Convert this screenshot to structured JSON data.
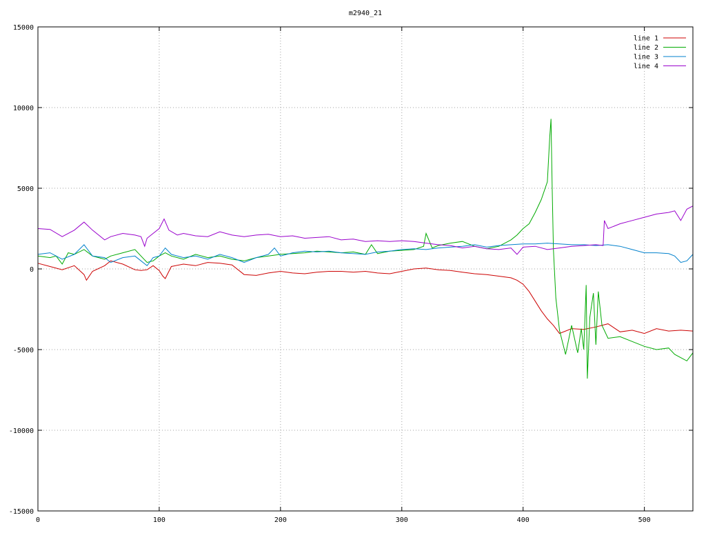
{
  "chart_data": {
    "type": "line",
    "title": "m2940_21",
    "xlabel": "",
    "ylabel": "",
    "xlim": [
      0,
      540
    ],
    "ylim": [
      -15000,
      15000
    ],
    "xticks": [
      0,
      100,
      200,
      300,
      400,
      500
    ],
    "yticks": [
      -15000,
      -10000,
      -5000,
      0,
      5000,
      10000,
      15000
    ],
    "grid": true,
    "legend_position": "top-right",
    "series": [
      {
        "name": "line 1",
        "color": "#cc0000",
        "points": [
          [
            0,
            350
          ],
          [
            10,
            150
          ],
          [
            20,
            -50
          ],
          [
            30,
            200
          ],
          [
            38,
            -350
          ],
          [
            40,
            -700
          ],
          [
            45,
            -150
          ],
          [
            55,
            200
          ],
          [
            60,
            500
          ],
          [
            70,
            300
          ],
          [
            80,
            -50
          ],
          [
            85,
            -100
          ],
          [
            90,
            -50
          ],
          [
            95,
            200
          ],
          [
            100,
            -100
          ],
          [
            103,
            -450
          ],
          [
            105,
            -600
          ],
          [
            110,
            150
          ],
          [
            120,
            300
          ],
          [
            130,
            200
          ],
          [
            140,
            400
          ],
          [
            150,
            350
          ],
          [
            160,
            250
          ],
          [
            170,
            -350
          ],
          [
            180,
            -400
          ],
          [
            190,
            -250
          ],
          [
            200,
            -150
          ],
          [
            210,
            -250
          ],
          [
            220,
            -300
          ],
          [
            230,
            -200
          ],
          [
            240,
            -150
          ],
          [
            250,
            -150
          ],
          [
            260,
            -200
          ],
          [
            270,
            -150
          ],
          [
            280,
            -250
          ],
          [
            290,
            -300
          ],
          [
            300,
            -150
          ],
          [
            310,
            0
          ],
          [
            320,
            50
          ],
          [
            330,
            -50
          ],
          [
            340,
            -100
          ],
          [
            350,
            -200
          ],
          [
            360,
            -300
          ],
          [
            370,
            -350
          ],
          [
            380,
            -450
          ],
          [
            390,
            -550
          ],
          [
            395,
            -700
          ],
          [
            400,
            -950
          ],
          [
            405,
            -1400
          ],
          [
            410,
            -2000
          ],
          [
            415,
            -2600
          ],
          [
            420,
            -3100
          ],
          [
            425,
            -3500
          ],
          [
            430,
            -4000
          ],
          [
            440,
            -3700
          ],
          [
            450,
            -3750
          ],
          [
            460,
            -3600
          ],
          [
            465,
            -3500
          ],
          [
            470,
            -3400
          ],
          [
            480,
            -3900
          ],
          [
            490,
            -3800
          ],
          [
            500,
            -4000
          ],
          [
            510,
            -3700
          ],
          [
            520,
            -3850
          ],
          [
            530,
            -3800
          ],
          [
            540,
            -3850
          ]
        ]
      },
      {
        "name": "line 2",
        "color": "#00aa00",
        "points": [
          [
            0,
            800
          ],
          [
            10,
            700
          ],
          [
            15,
            800
          ],
          [
            20,
            300
          ],
          [
            25,
            1000
          ],
          [
            30,
            900
          ],
          [
            38,
            1200
          ],
          [
            45,
            800
          ],
          [
            50,
            700
          ],
          [
            55,
            600
          ],
          [
            60,
            800
          ],
          [
            70,
            1000
          ],
          [
            80,
            1200
          ],
          [
            85,
            800
          ],
          [
            90,
            400
          ],
          [
            95,
            500
          ],
          [
            100,
            800
          ],
          [
            105,
            1000
          ],
          [
            110,
            800
          ],
          [
            120,
            600
          ],
          [
            130,
            900
          ],
          [
            140,
            700
          ],
          [
            150,
            800
          ],
          [
            160,
            600
          ],
          [
            170,
            500
          ],
          [
            180,
            700
          ],
          [
            190,
            800
          ],
          [
            200,
            900
          ],
          [
            210,
            950
          ],
          [
            220,
            1000
          ],
          [
            230,
            1100
          ],
          [
            240,
            1050
          ],
          [
            250,
            1000
          ],
          [
            260,
            1050
          ],
          [
            270,
            900
          ],
          [
            275,
            1500
          ],
          [
            280,
            950
          ],
          [
            290,
            1100
          ],
          [
            300,
            1150
          ],
          [
            310,
            1200
          ],
          [
            318,
            1400
          ],
          [
            320,
            2200
          ],
          [
            325,
            1300
          ],
          [
            330,
            1450
          ],
          [
            340,
            1600
          ],
          [
            350,
            1700
          ],
          [
            360,
            1400
          ],
          [
            370,
            1250
          ],
          [
            380,
            1400
          ],
          [
            385,
            1600
          ],
          [
            390,
            1800
          ],
          [
            395,
            2100
          ],
          [
            400,
            2500
          ],
          [
            405,
            2800
          ],
          [
            410,
            3500
          ],
          [
            415,
            4300
          ],
          [
            420,
            5400
          ],
          [
            422,
            8200
          ],
          [
            423,
            9300
          ],
          [
            424,
            5000
          ],
          [
            425,
            1200
          ],
          [
            427,
            -1800
          ],
          [
            430,
            -3800
          ],
          [
            435,
            -5300
          ],
          [
            440,
            -3500
          ],
          [
            445,
            -5200
          ],
          [
            448,
            -3700
          ],
          [
            450,
            -5000
          ],
          [
            452,
            -1000
          ],
          [
            453,
            -6800
          ],
          [
            455,
            -3000
          ],
          [
            458,
            -1500
          ],
          [
            460,
            -4700
          ],
          [
            462,
            -1400
          ],
          [
            465,
            -3500
          ],
          [
            470,
            -4300
          ],
          [
            480,
            -4200
          ],
          [
            490,
            -4500
          ],
          [
            500,
            -4800
          ],
          [
            510,
            -5000
          ],
          [
            520,
            -4900
          ],
          [
            525,
            -5300
          ],
          [
            530,
            -5500
          ],
          [
            535,
            -5700
          ],
          [
            540,
            -5200
          ]
        ]
      },
      {
        "name": "line 3",
        "color": "#0080cc",
        "points": [
          [
            0,
            900
          ],
          [
            10,
            1000
          ],
          [
            20,
            600
          ],
          [
            30,
            900
          ],
          [
            38,
            1500
          ],
          [
            45,
            800
          ],
          [
            55,
            700
          ],
          [
            60,
            400
          ],
          [
            70,
            700
          ],
          [
            80,
            800
          ],
          [
            85,
            500
          ],
          [
            90,
            200
          ],
          [
            95,
            700
          ],
          [
            100,
            800
          ],
          [
            105,
            1300
          ],
          [
            110,
            900
          ],
          [
            120,
            700
          ],
          [
            130,
            800
          ],
          [
            140,
            600
          ],
          [
            150,
            900
          ],
          [
            160,
            700
          ],
          [
            170,
            400
          ],
          [
            180,
            700
          ],
          [
            190,
            900
          ],
          [
            195,
            1300
          ],
          [
            200,
            800
          ],
          [
            210,
            1000
          ],
          [
            220,
            1100
          ],
          [
            230,
            1050
          ],
          [
            240,
            1100
          ],
          [
            250,
            1000
          ],
          [
            260,
            950
          ],
          [
            270,
            900
          ],
          [
            280,
            1050
          ],
          [
            290,
            1100
          ],
          [
            300,
            1200
          ],
          [
            310,
            1250
          ],
          [
            320,
            1200
          ],
          [
            330,
            1300
          ],
          [
            340,
            1350
          ],
          [
            350,
            1400
          ],
          [
            360,
            1500
          ],
          [
            370,
            1350
          ],
          [
            380,
            1450
          ],
          [
            390,
            1500
          ],
          [
            400,
            1550
          ],
          [
            410,
            1550
          ],
          [
            420,
            1600
          ],
          [
            430,
            1550
          ],
          [
            440,
            1500
          ],
          [
            450,
            1500
          ],
          [
            460,
            1450
          ],
          [
            470,
            1500
          ],
          [
            480,
            1400
          ],
          [
            490,
            1200
          ],
          [
            500,
            1000
          ],
          [
            510,
            1000
          ],
          [
            520,
            950
          ],
          [
            525,
            800
          ],
          [
            530,
            400
          ],
          [
            535,
            500
          ],
          [
            540,
            900
          ]
        ]
      },
      {
        "name": "line 4",
        "color": "#9900cc",
        "points": [
          [
            0,
            2500
          ],
          [
            10,
            2450
          ],
          [
            20,
            2000
          ],
          [
            30,
            2400
          ],
          [
            38,
            2900
          ],
          [
            45,
            2400
          ],
          [
            55,
            1800
          ],
          [
            60,
            2000
          ],
          [
            70,
            2200
          ],
          [
            80,
            2100
          ],
          [
            85,
            2000
          ],
          [
            88,
            1400
          ],
          [
            90,
            1900
          ],
          [
            100,
            2500
          ],
          [
            104,
            3100
          ],
          [
            108,
            2400
          ],
          [
            115,
            2100
          ],
          [
            120,
            2200
          ],
          [
            130,
            2050
          ],
          [
            140,
            2000
          ],
          [
            150,
            2300
          ],
          [
            160,
            2100
          ],
          [
            170,
            2000
          ],
          [
            180,
            2100
          ],
          [
            190,
            2150
          ],
          [
            200,
            2000
          ],
          [
            210,
            2050
          ],
          [
            220,
            1900
          ],
          [
            230,
            1950
          ],
          [
            240,
            2000
          ],
          [
            250,
            1800
          ],
          [
            260,
            1850
          ],
          [
            270,
            1700
          ],
          [
            280,
            1750
          ],
          [
            290,
            1700
          ],
          [
            300,
            1750
          ],
          [
            310,
            1700
          ],
          [
            320,
            1600
          ],
          [
            330,
            1500
          ],
          [
            340,
            1450
          ],
          [
            350,
            1300
          ],
          [
            360,
            1400
          ],
          [
            370,
            1250
          ],
          [
            380,
            1200
          ],
          [
            390,
            1300
          ],
          [
            395,
            900
          ],
          [
            400,
            1350
          ],
          [
            410,
            1400
          ],
          [
            420,
            1200
          ],
          [
            430,
            1300
          ],
          [
            440,
            1400
          ],
          [
            450,
            1450
          ],
          [
            460,
            1500
          ],
          [
            466,
            1450
          ],
          [
            467,
            3000
          ],
          [
            470,
            2500
          ],
          [
            480,
            2800
          ],
          [
            490,
            3000
          ],
          [
            500,
            3200
          ],
          [
            510,
            3400
          ],
          [
            520,
            3500
          ],
          [
            525,
            3600
          ],
          [
            530,
            3000
          ],
          [
            535,
            3700
          ],
          [
            540,
            3900
          ]
        ]
      }
    ]
  }
}
